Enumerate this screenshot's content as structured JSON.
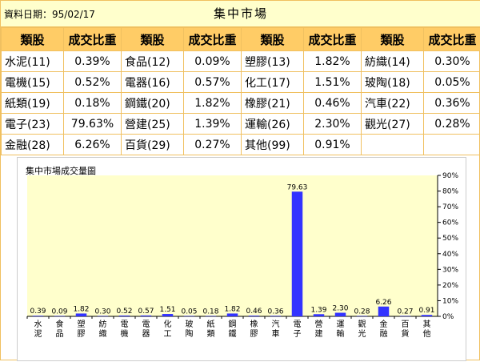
{
  "header": {
    "date_label": "資料日期：95/02/17",
    "title": "集中市場"
  },
  "table": {
    "headers": [
      "類股",
      "成交比重",
      "類股",
      "成交比重",
      "類股",
      "成交比重",
      "類股",
      "成交比重"
    ],
    "rows": [
      [
        "水泥(11)",
        "0.39%",
        "食品(12)",
        "0.09%",
        "塑膠(13)",
        "1.82%",
        "紡織(14)",
        "0.30%"
      ],
      [
        "電機(15)",
        "0.52%",
        "電器(16)",
        "0.57%",
        "化工(17)",
        "1.51%",
        "玻陶(18)",
        "0.05%"
      ],
      [
        "紙類(19)",
        "0.18%",
        "鋼鐵(20)",
        "1.82%",
        "橡膠(21)",
        "0.46%",
        "汽車(22)",
        "0.36%"
      ],
      [
        "電子(23)",
        "79.63%",
        "營建(25)",
        "1.39%",
        "運輸(26)",
        "2.30%",
        "觀光(27)",
        "0.28%"
      ],
      [
        "金融(28)",
        "6.26%",
        "百貨(29)",
        "0.27%",
        "其他(99)",
        "0.91%",
        "",
        ""
      ]
    ]
  },
  "chart_data": {
    "type": "bar",
    "title": "集中市場成交量圖",
    "categories": [
      "水泥",
      "食品",
      "塑膠",
      "紡織",
      "電機",
      "電器",
      "化工",
      "玻陶",
      "紙類",
      "鋼鐵",
      "橡膠",
      "汽車",
      "電子",
      "營建",
      "運輸",
      "觀光",
      "金融",
      "百貨",
      "其他"
    ],
    "values": [
      0.39,
      0.09,
      1.82,
      0.3,
      0.52,
      0.57,
      1.51,
      0.05,
      0.18,
      1.82,
      0.46,
      0.36,
      79.63,
      1.39,
      2.3,
      0.28,
      6.26,
      0.27,
      0.91
    ],
    "value_labels": [
      "0.39",
      "0.09",
      "1.82",
      "0.30",
      "0.52",
      "0.57",
      "1.51",
      "0.05",
      "0.18",
      "1.82",
      "0.46",
      "0.36",
      "79.63",
      "1.39",
      "2.30",
      "0.28",
      "6.26",
      "0.27",
      "0.91"
    ],
    "ylim": [
      0,
      90
    ],
    "yticks": [
      0,
      10,
      20,
      30,
      40,
      50,
      60,
      70,
      80,
      90
    ],
    "ytick_labels": [
      "0%",
      "10%",
      "20%",
      "30%",
      "40%",
      "50%",
      "60%",
      "70%",
      "80%",
      "90%"
    ],
    "y_axis_side": "right",
    "grid": false,
    "colors": {
      "bar": "#3333ff",
      "plot_bg": "#ffffcc",
      "axis": "#000000"
    }
  }
}
